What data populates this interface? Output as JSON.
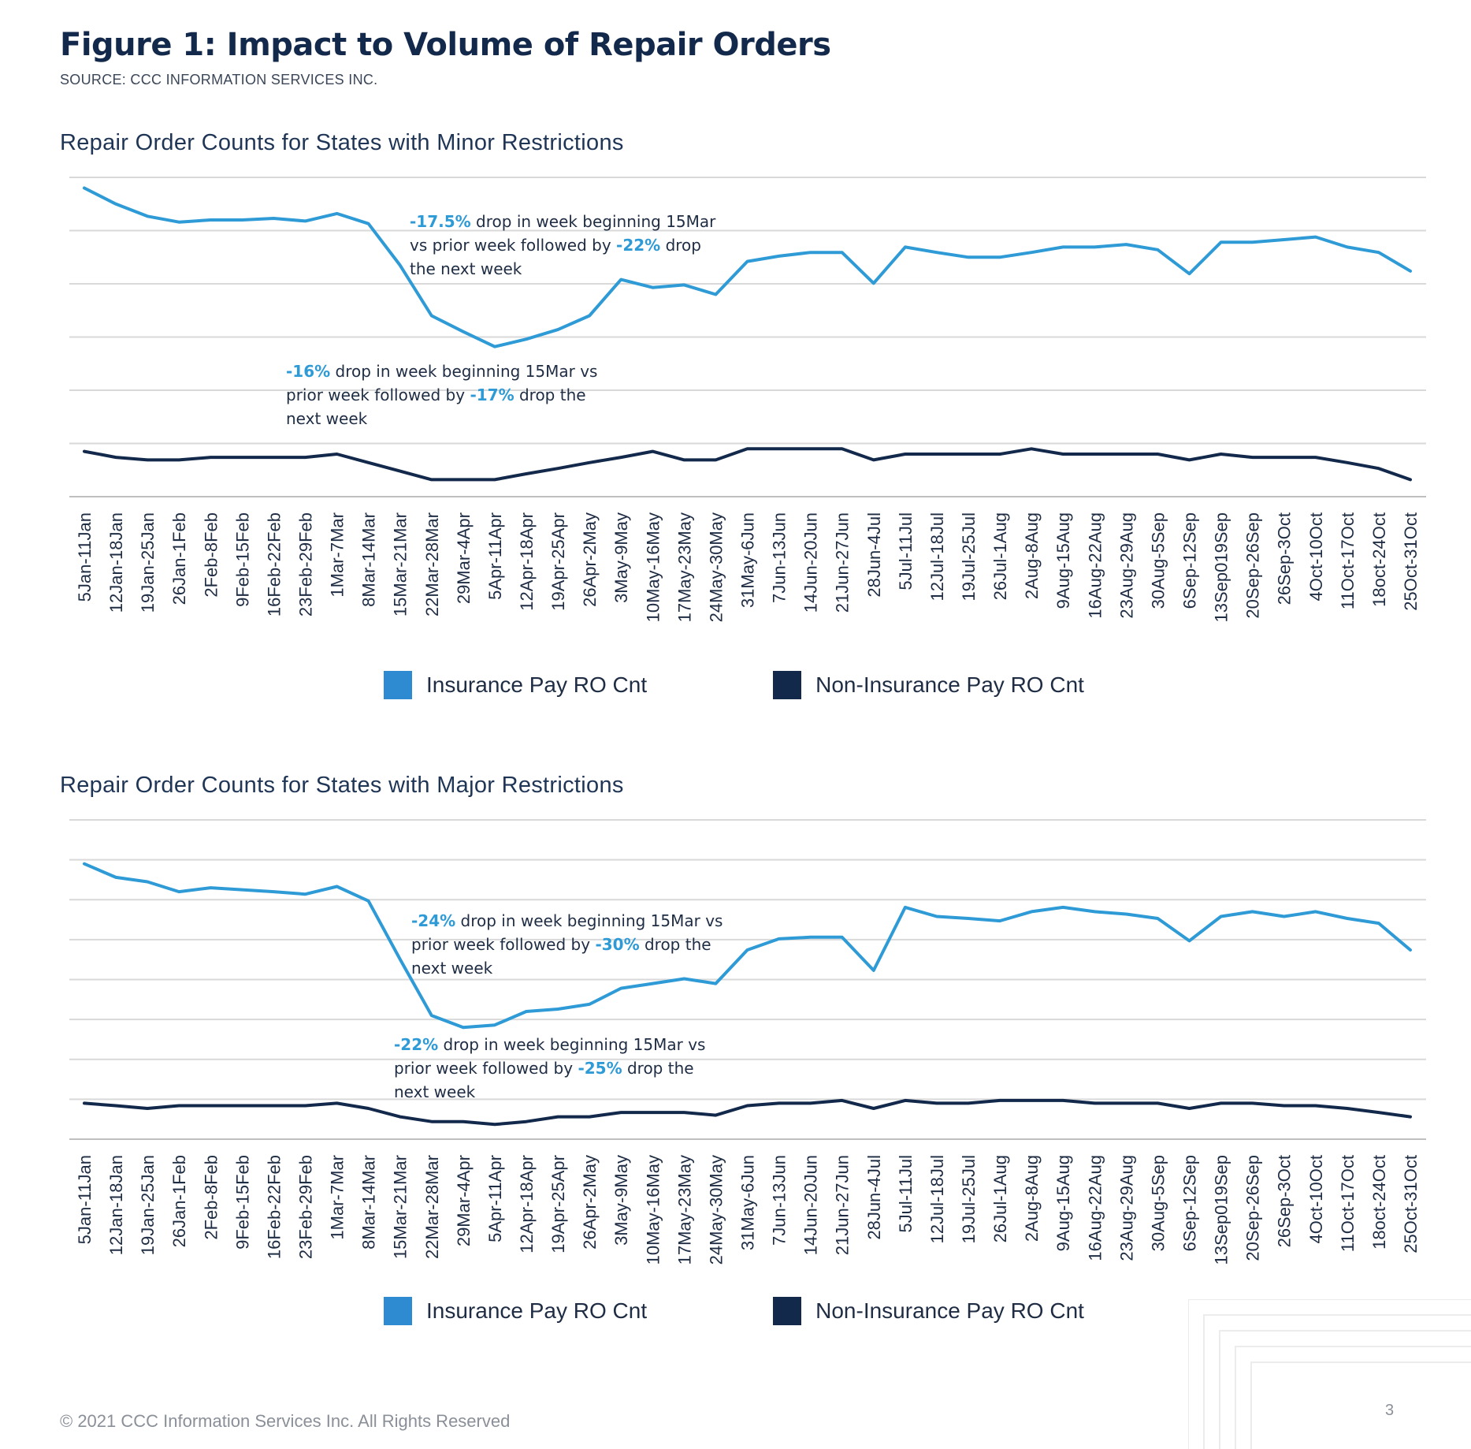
{
  "title": "Figure 1: Impact to Volume of Repair Orders",
  "source": "SOURCE: CCC INFORMATION SERVICES INC.",
  "footer": "© 2021 CCC Information Services Inc. All Rights Reserved",
  "page_number": "3",
  "colors": {
    "insurance": "#2e9ad6",
    "non_insurance": "#13294b",
    "grid": "#d9d9d9"
  },
  "legend": {
    "insurance": "Insurance Pay RO Cnt",
    "non_insurance": "Non-Insurance Pay RO Cnt"
  },
  "annotations": {
    "minor_insurance": {
      "pct1": "-17.5%",
      "text1": " drop in week beginning 15Mar",
      "text2": "vs prior week followed by ",
      "pct2": "-22%",
      "text3": " drop",
      "text4": "the next week"
    },
    "minor_non_insurance": {
      "pct1": "-16%",
      "text1": " drop in week beginning 15Mar vs",
      "text2": "prior week followed by ",
      "pct2": "-17%",
      "text3": " drop the",
      "text4": "next week"
    },
    "major_insurance": {
      "pct1": "-24%",
      "text1": " drop in week beginning 15Mar vs",
      "text2": "prior week followed by ",
      "pct2": "-30%",
      "text3": " drop the",
      "text4": "next week"
    },
    "major_non_insurance": {
      "pct1": "-22%",
      "text1": " drop in week beginning 15Mar vs",
      "text2": "prior week followed by ",
      "pct2": "-25%",
      "text3": " drop the",
      "text4": "next week"
    }
  },
  "chart_data": [
    {
      "type": "line",
      "title": "Repair Order Counts for States with Minor Restrictions",
      "y_axis_labels_shown": false,
      "grid": true,
      "legend_position": "bottom",
      "ylim": [
        0,
        6
      ],
      "categories": [
        "5Jan-11Jan",
        "12Jan-18Jan",
        "19Jan-25Jan",
        "26Jan-1Feb",
        "2Feb-8Feb",
        "9Feb-15Feb",
        "16Feb-22Feb",
        "23Feb-29Feb",
        "1Mar-7Mar",
        "8Mar-14Mar",
        "15Mar-21Mar",
        "22Mar-28Mar",
        "29Mar-4Apr",
        "5Apr-11Apr",
        "12Apr-18Apr",
        "19Apr-25Apr",
        "26Apr-2May",
        "3May-9May",
        "10May-16May",
        "17May-23May",
        "24May-30May",
        "31May-6Jun",
        "7Jun-13Jun",
        "14Jun-20Jun",
        "21Jun-27Jun",
        "28Jun-4Jul",
        "5Jul-11Jul",
        "12Jul-18Jul",
        "19Jul-25Jul",
        "26Jul-1Aug",
        "2Aug-8Aug",
        "9Aug-15Aug",
        "16Aug-22Aug",
        "23Aug-29Aug",
        "30Aug-5Sep",
        "6Sep-12Sep",
        "13Sep019Sep",
        "20Sep-26Sep",
        "26Sep-3Oct",
        "4Oct-10Oct",
        "11Oct-17Oct",
        "18oct-24Oct",
        "25Oct-31Oct"
      ],
      "series": [
        {
          "name": "Insurance Pay RO Cnt",
          "values": [
            5.8,
            5.5,
            5.27,
            5.16,
            5.2,
            5.2,
            5.23,
            5.18,
            5.32,
            5.13,
            4.35,
            3.4,
            3.1,
            2.82,
            2.96,
            3.14,
            3.4,
            4.08,
            3.93,
            3.98,
            3.8,
            4.42,
            4.52,
            4.59,
            4.59,
            4.01,
            4.69,
            4.59,
            4.5,
            4.5,
            4.59,
            4.69,
            4.69,
            4.74,
            4.64,
            4.19,
            4.78,
            4.78,
            4.83,
            4.88,
            4.69,
            4.59,
            4.24
          ]
        },
        {
          "name": "Non-Insurance Pay RO Cnt",
          "values": [
            0.85,
            0.74,
            0.69,
            0.69,
            0.74,
            0.74,
            0.74,
            0.74,
            0.8,
            0.64,
            0.48,
            0.32,
            0.32,
            0.32,
            0.43,
            0.53,
            0.64,
            0.74,
            0.85,
            0.69,
            0.69,
            0.9,
            0.9,
            0.9,
            0.9,
            0.69,
            0.8,
            0.8,
            0.8,
            0.8,
            0.9,
            0.8,
            0.8,
            0.8,
            0.8,
            0.69,
            0.8,
            0.74,
            0.74,
            0.74,
            0.64,
            0.53,
            0.32
          ]
        }
      ]
    },
    {
      "type": "line",
      "title": "Repair Order Counts for States with Major Restrictions",
      "y_axis_labels_shown": false,
      "grid": true,
      "legend_position": "bottom",
      "ylim": [
        0,
        8
      ],
      "categories": [
        "5Jan-11Jan",
        "12Jan-18Jan",
        "19Jan-25Jan",
        "26Jan-1Feb",
        "2Feb-8Feb",
        "9Feb-15Feb",
        "16Feb-22Feb",
        "23Feb-29Feb",
        "1Mar-7Mar",
        "8Mar-14Mar",
        "15Mar-21Mar",
        "22Mar-28Mar",
        "29Mar-4Apr",
        "5Apr-11Apr",
        "12Apr-18Apr",
        "19Apr-25Apr",
        "26Apr-2May",
        "3May-9May",
        "10May-16May",
        "17May-23May",
        "24May-30May",
        "31May-6Jun",
        "7Jun-13Jun",
        "14Jun-20Jun",
        "21Jun-27Jun",
        "28Jun-4Jul",
        "5Jul-11Jul",
        "12Jul-18Jul",
        "19Jul-25Jul",
        "26Jul-1Aug",
        "2Aug-8Aug",
        "9Aug-15Aug",
        "16Aug-22Aug",
        "23Aug-29Aug",
        "30Aug-5Sep",
        "6Sep-12Sep",
        "13Sep019Sep",
        "20Sep-26Sep",
        "26Sep-3Oct",
        "4Oct-10Oct",
        "11Oct-17Oct",
        "18oct-24Oct",
        "25Oct-31Oct"
      ],
      "series": [
        {
          "name": "Insurance Pay RO Cnt",
          "values": [
            6.9,
            6.56,
            6.45,
            6.2,
            6.3,
            6.25,
            6.2,
            6.14,
            6.33,
            5.97,
            4.51,
            3.1,
            2.8,
            2.86,
            3.2,
            3.26,
            3.38,
            3.78,
            3.9,
            4.02,
            3.9,
            4.74,
            5.02,
            5.06,
            5.06,
            4.23,
            5.81,
            5.58,
            5.53,
            5.47,
            5.7,
            5.81,
            5.7,
            5.64,
            5.53,
            4.97,
            5.58,
            5.7,
            5.58,
            5.7,
            5.53,
            5.41,
            4.74
          ]
        },
        {
          "name": "Non-Insurance Pay RO Cnt",
          "values": [
            0.9,
            0.84,
            0.77,
            0.84,
            0.84,
            0.84,
            0.84,
            0.84,
            0.9,
            0.77,
            0.56,
            0.44,
            0.44,
            0.37,
            0.44,
            0.56,
            0.56,
            0.67,
            0.67,
            0.67,
            0.6,
            0.84,
            0.9,
            0.9,
            0.97,
            0.77,
            0.97,
            0.9,
            0.9,
            0.97,
            0.97,
            0.97,
            0.9,
            0.9,
            0.9,
            0.77,
            0.9,
            0.9,
            0.84,
            0.84,
            0.77,
            0.67,
            0.56
          ]
        }
      ]
    }
  ]
}
